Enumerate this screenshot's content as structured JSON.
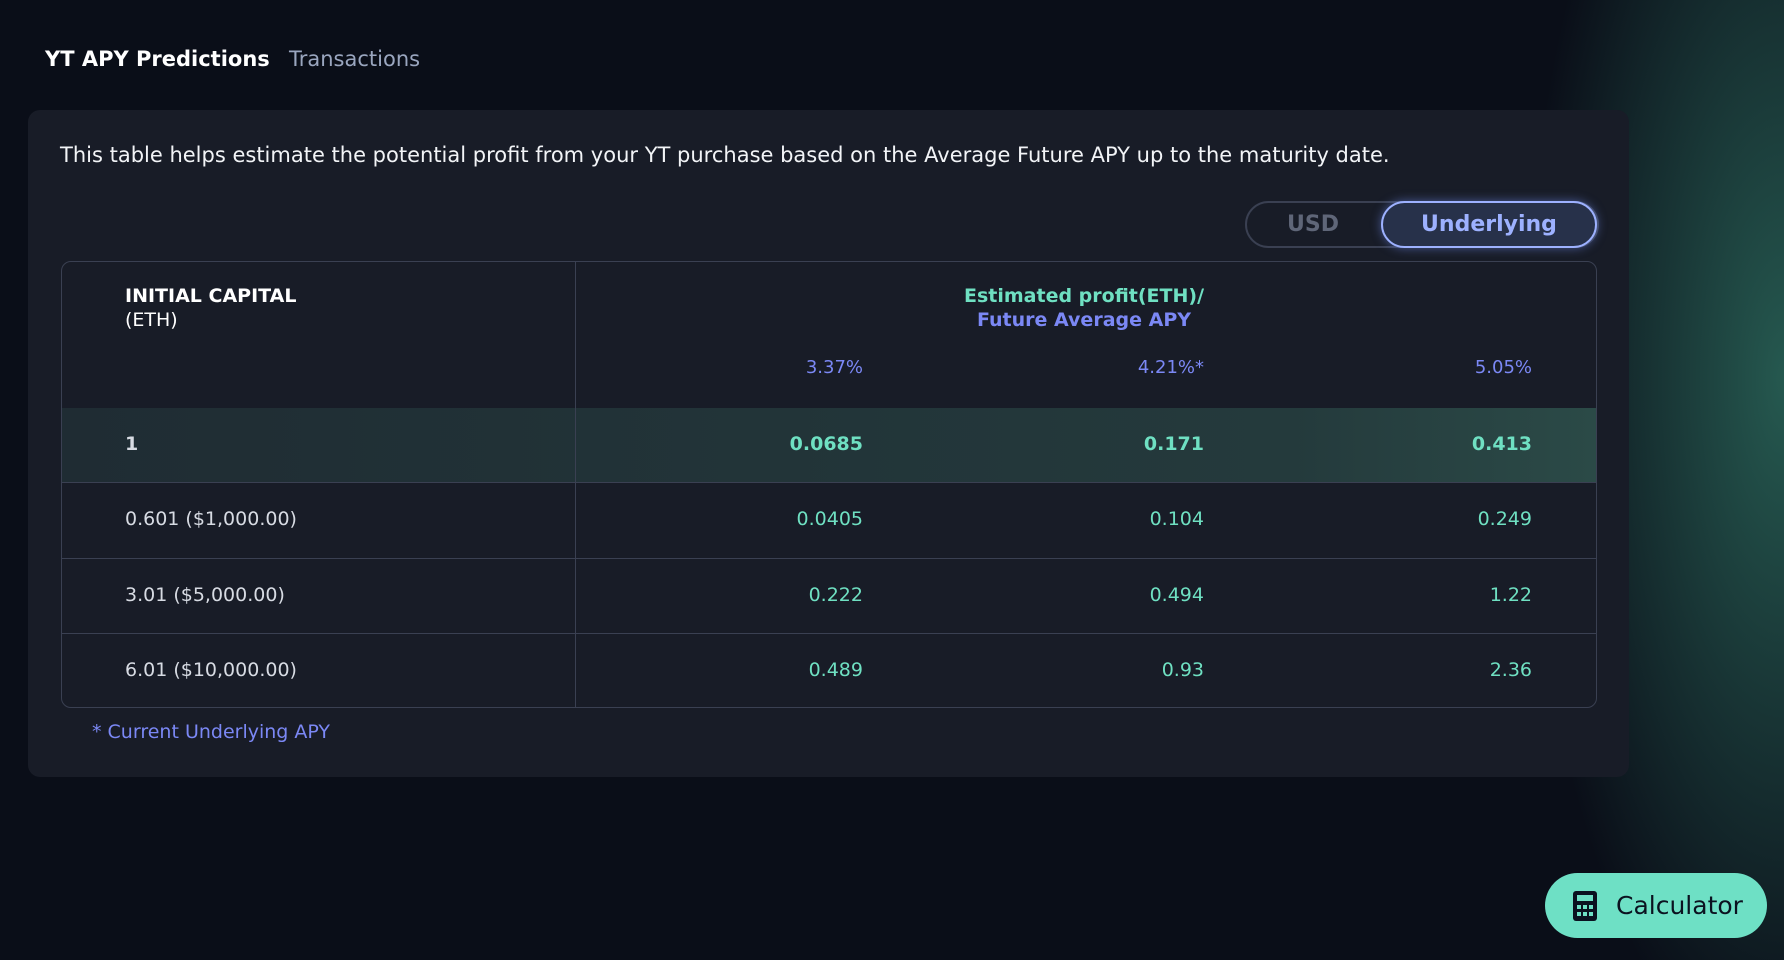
{
  "tabs": [
    "YT APY Predictions",
    "Transactions"
  ],
  "description": "This table helps estimate the potential profit from your YT purchase based on the Average Future APY up to the maturity date.",
  "toggle": [
    "USD",
    "Underlying"
  ],
  "table": {
    "capital_header": "INITIAL CAPITAL",
    "capital_unit": "(ETH)",
    "profit_header": "Estimated profit(ETH)/",
    "apy_header": "Future Average APY",
    "apy_columns": [
      "3.37%",
      "4.21%*",
      "5.05%"
    ],
    "rows": [
      [
        "1",
        "0.0685",
        "0.171",
        "0.413"
      ],
      [
        "0.601 ($1,000.00)",
        "0.0405",
        "0.104",
        "0.249"
      ],
      [
        "3.01 ($5,000.00)",
        "0.222",
        "0.494",
        "1.22"
      ],
      [
        "6.01 ($10,000.00)",
        "0.489",
        "0.93",
        "2.36"
      ]
    ]
  },
  "footnote": "* Current Underlying APY",
  "button": "Calculator"
}
